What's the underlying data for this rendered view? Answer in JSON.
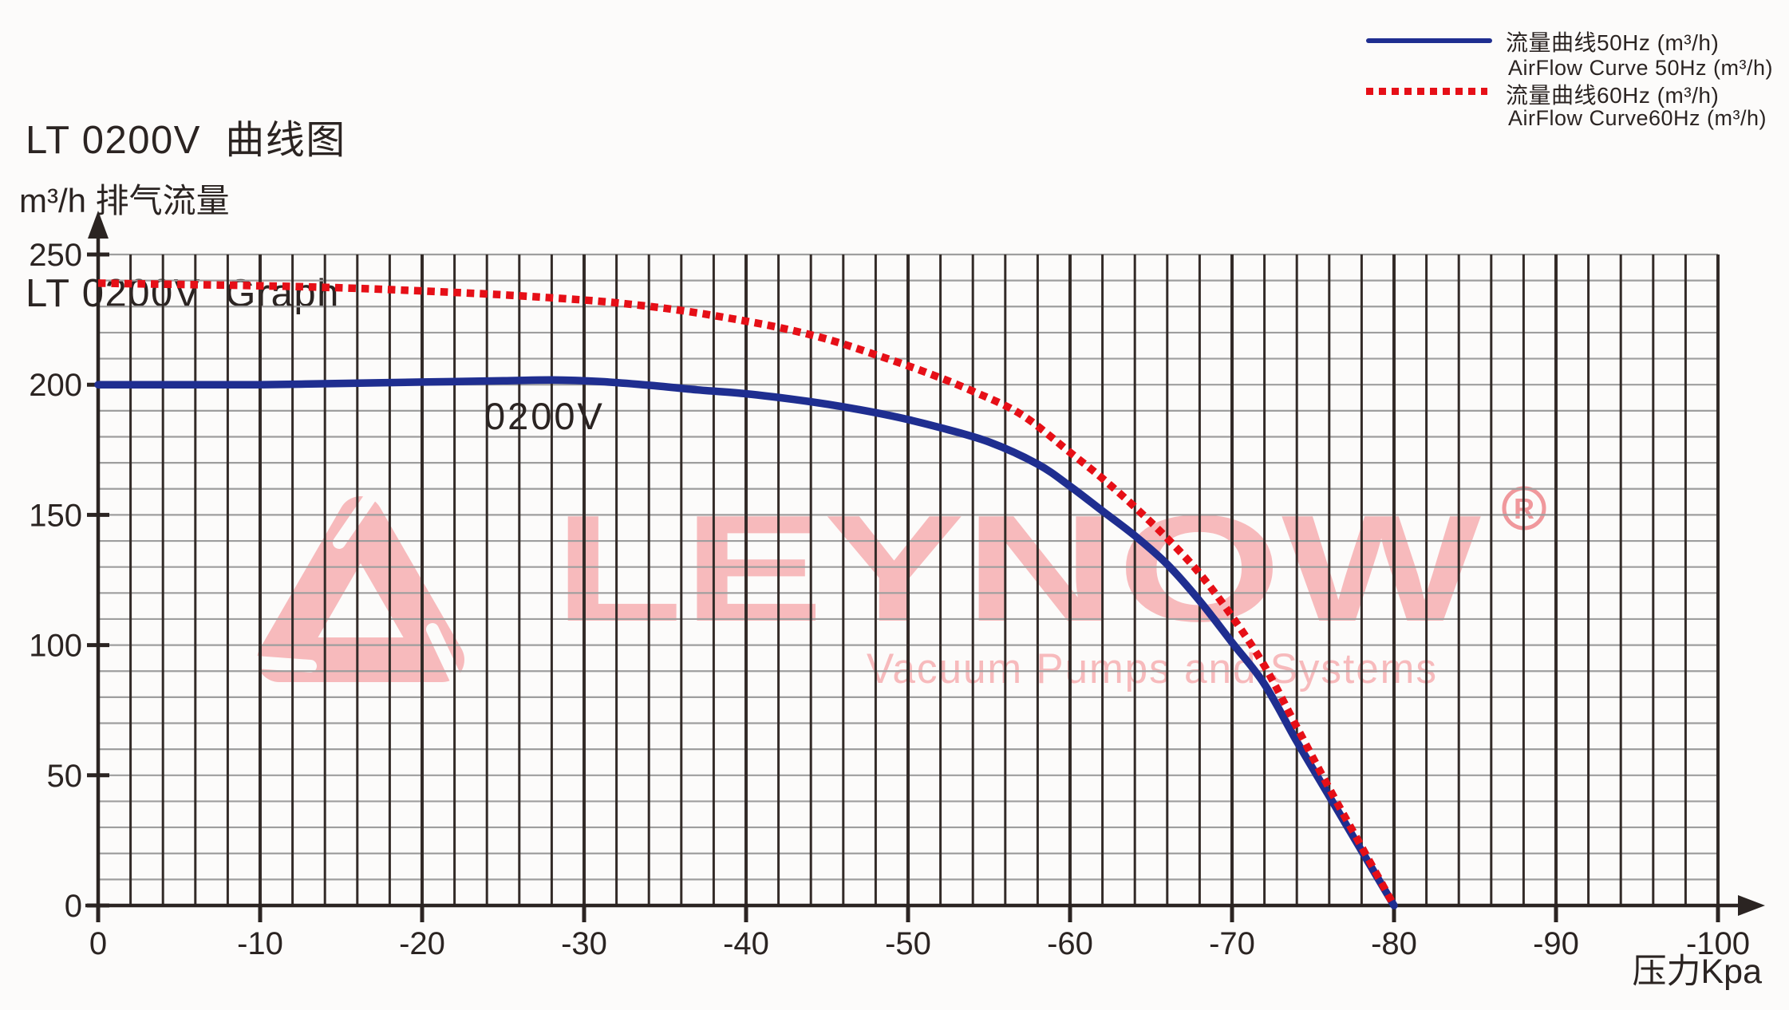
{
  "title": {
    "line1": "LT 0200V  曲线图",
    "line2": "LT 0200V  Graph"
  },
  "legend": {
    "rows": [
      {
        "swatch": "solid-blue",
        "label": "流量曲线50Hz (m³/h)"
      },
      {
        "swatch": null,
        "label": "AirFlow Curve 50Hz (m³/h)"
      },
      {
        "swatch": "dotted-red",
        "label": "流量曲线60Hz (m³/h)"
      },
      {
        "swatch": null,
        "label": "AirFlow Curve60Hz (m³/h)"
      }
    ]
  },
  "axes": {
    "y_unit_label": "m³/h 排气流量",
    "x_unit_label": "压力Kpa",
    "y_ticks": [
      {
        "v": 0,
        "label": "0"
      },
      {
        "v": 50,
        "label": "50"
      },
      {
        "v": 100,
        "label": "100"
      },
      {
        "v": 150,
        "label": "150"
      },
      {
        "v": 200,
        "label": "200"
      },
      {
        "v": 250,
        "label": "250"
      }
    ],
    "x_ticks": [
      {
        "kpa": 0,
        "label": "0"
      },
      {
        "kpa": -10,
        "label": "-10"
      },
      {
        "kpa": -20,
        "label": "-20"
      },
      {
        "kpa": -30,
        "label": "-30"
      },
      {
        "kpa": -40,
        "label": "-40"
      },
      {
        "kpa": -50,
        "label": "-50"
      },
      {
        "kpa": -60,
        "label": "-60"
      },
      {
        "kpa": -70,
        "label": "-70"
      },
      {
        "kpa": -80,
        "label": "-80"
      },
      {
        "kpa": -90,
        "label": "-90"
      },
      {
        "kpa": -100,
        "label": "-100"
      }
    ]
  },
  "curve_label": "0200V",
  "watermark": {
    "brand": "LEYNOW",
    "registered_mark": "R",
    "subtitle": "Vacuum Pumps and Systems",
    "color": "#f7babc"
  },
  "colors": {
    "text_dark": "#2b2422",
    "grid_vertical": "#332b28",
    "grid_horizontal": "#9e9e9e",
    "curve_50hz_blue": "#1f2e90",
    "curve_60hz_red": "#e60f17",
    "watermark_pink": "#f7babc",
    "watermark_registered_pink": "#f0989c",
    "background": "#fcfbfa"
  },
  "chart_data": {
    "type": "line",
    "title": "LT 0200V Graph",
    "xlabel": "压力Kpa",
    "ylabel": "m³/h 排气流量",
    "xlim": [
      0,
      -100
    ],
    "ylim": [
      0,
      250
    ],
    "x_major_step": 10,
    "x_minor_step": 2,
    "y_major_step": 50,
    "y_minor_step": 10,
    "grid": "on",
    "legend_position": "top-right",
    "series": [
      {
        "name": "流量曲线50Hz (m³/h) / AirFlow Curve 50Hz (m³/h)",
        "style": "solid",
        "color": "#1f2e90",
        "points": [
          [
            0,
            200
          ],
          [
            -5,
            200
          ],
          [
            -10,
            200
          ],
          [
            -15,
            200.5
          ],
          [
            -20,
            201
          ],
          [
            -25,
            201.5
          ],
          [
            -28,
            201.8
          ],
          [
            -31,
            201.2
          ],
          [
            -34,
            199.8
          ],
          [
            -37,
            198
          ],
          [
            -40,
            196.5
          ],
          [
            -43,
            194.3
          ],
          [
            -46,
            191.5
          ],
          [
            -49,
            188
          ],
          [
            -52,
            183.5
          ],
          [
            -55,
            178
          ],
          [
            -58,
            169.5
          ],
          [
            -60,
            161
          ],
          [
            -62,
            151.5
          ],
          [
            -64,
            142
          ],
          [
            -66,
            131
          ],
          [
            -68,
            117
          ],
          [
            -70,
            101
          ],
          [
            -72,
            85
          ],
          [
            -74,
            63
          ],
          [
            -76,
            42
          ],
          [
            -78,
            21
          ],
          [
            -80,
            0
          ]
        ]
      },
      {
        "name": "流量曲线60Hz (m³/h) / AirFlow Curve60Hz (m³/h)",
        "style": "dotted",
        "color": "#e60f17",
        "points": [
          [
            0,
            239
          ],
          [
            -5,
            238.5
          ],
          [
            -10,
            238
          ],
          [
            -15,
            237.2
          ],
          [
            -20,
            236
          ],
          [
            -25,
            234.5
          ],
          [
            -30,
            232.5
          ],
          [
            -33,
            230.8
          ],
          [
            -36,
            228.5
          ],
          [
            -39,
            225.5
          ],
          [
            -42,
            222
          ],
          [
            -45,
            217.5
          ],
          [
            -48,
            211.5
          ],
          [
            -51,
            205
          ],
          [
            -54,
            197.5
          ],
          [
            -57,
            188.5
          ],
          [
            -60,
            174
          ],
          [
            -62,
            164
          ],
          [
            -64,
            153
          ],
          [
            -66,
            141
          ],
          [
            -68,
            127.5
          ],
          [
            -70,
            111
          ],
          [
            -72,
            92
          ],
          [
            -74,
            68.5
          ],
          [
            -76,
            45
          ],
          [
            -78,
            22.5
          ],
          [
            -80,
            0
          ]
        ]
      }
    ]
  }
}
